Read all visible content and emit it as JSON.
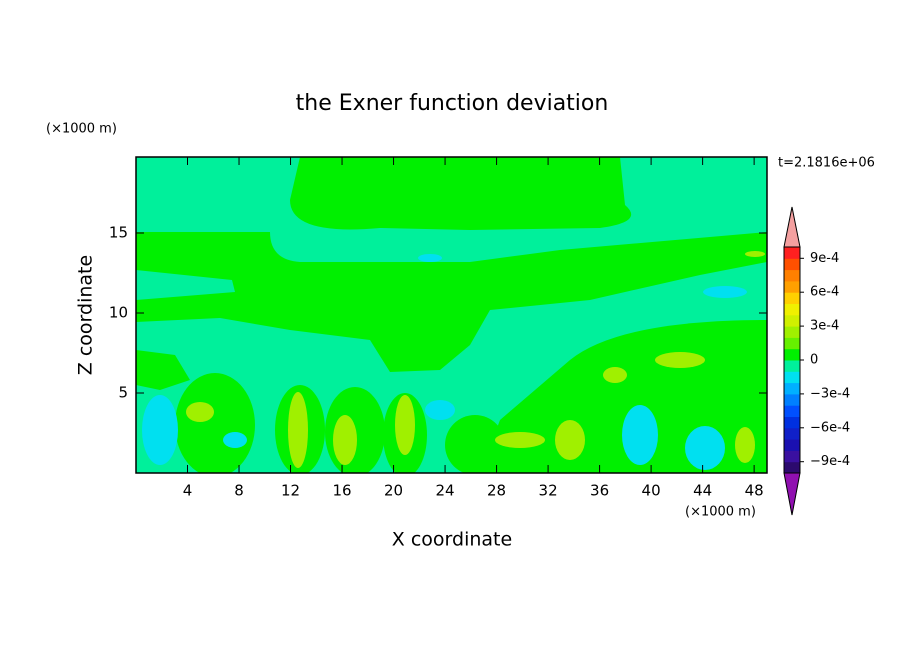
{
  "chart_data": {
    "type": "contour",
    "title": "the Exner function deviation",
    "x_label": "X coordinate",
    "y_label": "Z coordinate",
    "x_unit": "(×1000 m)",
    "y_unit": "(×1000 m)",
    "annotation": "t=2.1816e+06",
    "xlim": [
      0,
      49
    ],
    "ylim": [
      0,
      19.75
    ],
    "xticks": [
      4,
      8,
      12,
      16,
      20,
      24,
      28,
      32,
      36,
      40,
      44,
      48
    ],
    "yticks": [
      5,
      10,
      15
    ],
    "colorbar": {
      "clim": [
        -0.001,
        0.001
      ],
      "colors": [
        "#2c0a6e",
        "#3a10a0",
        "#1a10b0",
        "#1020c8",
        "#0030e0",
        "#0050ff",
        "#0080ff",
        "#00b0ff",
        "#00e0f0",
        "#00f09b",
        "#00f000",
        "#66f000",
        "#a0f000",
        "#d0f000",
        "#f0f000",
        "#ffd000",
        "#ffa000",
        "#ff8000",
        "#ff5000",
        "#ff2020"
      ],
      "over_color": "#f4a0a0",
      "under_color": "#9010b0",
      "ticks": [
        {
          "value": 0.0009,
          "label": "9e-4"
        },
        {
          "value": 0.0006,
          "label": "6e-4"
        },
        {
          "value": 0.0003,
          "label": "3e-4"
        },
        0,
        {
          "value": -0.0003,
          "label": "−3e-4"
        },
        {
          "value": -0.0006,
          "label": "−6e-4"
        },
        {
          "value": -0.0009,
          "label": "−9e-4"
        }
      ]
    }
  }
}
